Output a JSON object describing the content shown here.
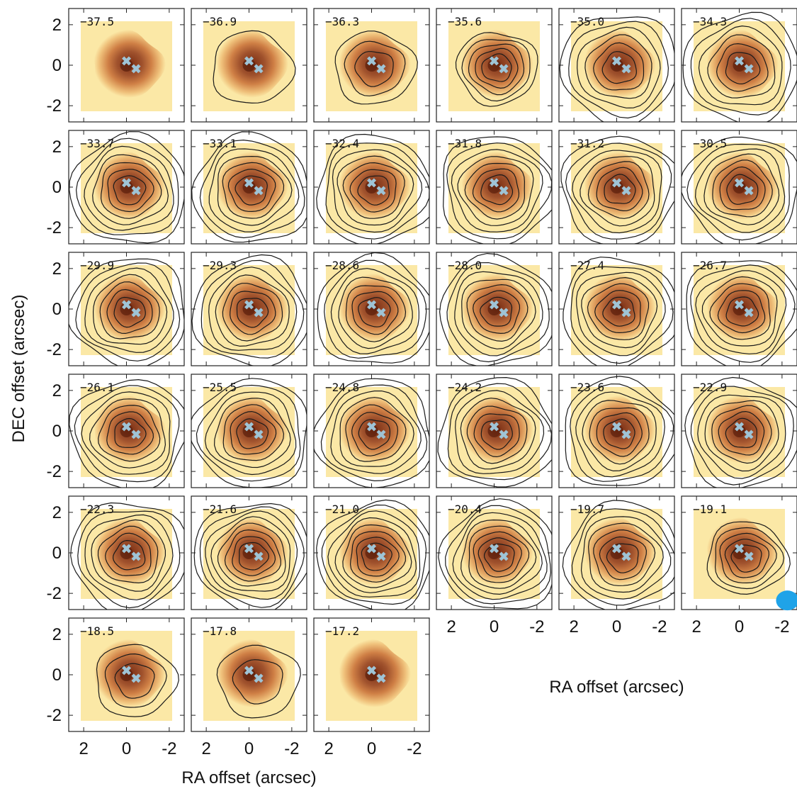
{
  "chart_data": {
    "type": "channel-map",
    "xlabel": "RA offset (arcsec)",
    "ylabel": "DEC offset (arcsec)",
    "xlim": [
      2.7,
      -2.7
    ],
    "ylim": [
      -2.8,
      2.8
    ],
    "xticks": [
      "2",
      "0",
      "-2"
    ],
    "yticks": [
      "2",
      "0",
      "-2"
    ],
    "xtick_values": [
      2,
      0,
      -2
    ],
    "ytick_values": [
      2,
      0,
      -2
    ],
    "source_markers": [
      {
        "x": 0.0,
        "y": 0.2
      },
      {
        "x": -0.45,
        "y": -0.2
      }
    ],
    "beam": {
      "major_arcsec": 0.45,
      "minor_arcsec": 0.4
    },
    "colors": {
      "background_low": "#fbe8a6",
      "emission_mid": "#d98a4d",
      "emission_high": "#8a3b1c",
      "contours": "#1a1a1a",
      "markers": "#9fc4d6",
      "beam": "#1fa3e8"
    },
    "channels": [
      "−37.5",
      "−36.9",
      "−36.3",
      "−35.6",
      "−35.0",
      "−34.3",
      "−33.7",
      "−33.1",
      "−32.4",
      "−31.8",
      "−31.2",
      "−30.5",
      "−29.9",
      "−29.3",
      "−28.6",
      "−28.0",
      "−27.4",
      "−26.7",
      "−26.1",
      "−25.5",
      "−24.8",
      "−24.2",
      "−23.6",
      "−22.9",
      "−22.3",
      "−21.6",
      "−21.0",
      "−20.4",
      "−19.7",
      "−19.1",
      "−18.5",
      "−17.8",
      "−17.2"
    ],
    "contour_levels_per_channel": [
      0,
      1,
      3,
      5,
      6,
      6,
      7,
      7,
      7,
      7,
      7,
      7,
      7,
      7,
      7,
      7,
      7,
      7,
      7,
      7,
      7,
      7,
      7,
      7,
      7,
      8,
      8,
      8,
      7,
      5,
      3,
      2,
      0
    ]
  }
}
